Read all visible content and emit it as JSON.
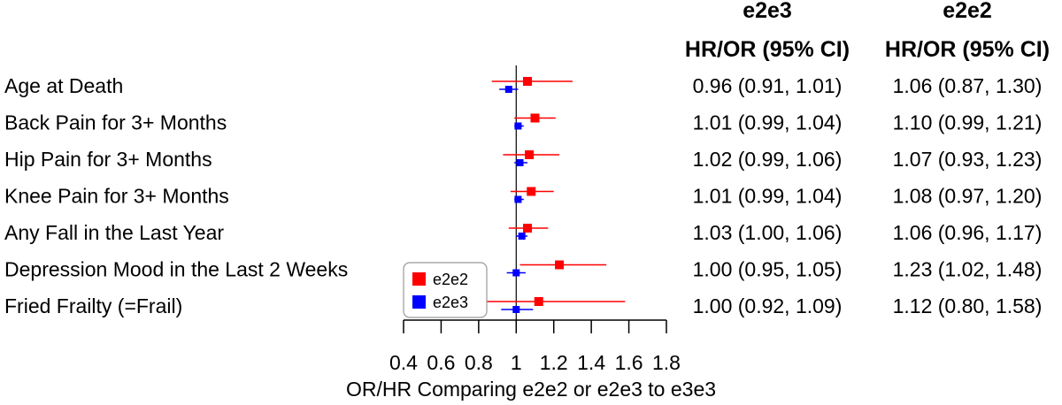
{
  "chart_data": {
    "type": "forest",
    "xlabel": "OR/HR Comparing e2e2 or e2e3 to e3e3",
    "xlim": [
      0.4,
      1.8
    ],
    "xticks": [
      0.4,
      0.6,
      0.8,
      1,
      1.2,
      1.4,
      1.6,
      1.8
    ],
    "xtick_labels": [
      "0.4",
      "0.6",
      "0.8",
      "1",
      "1.2",
      "1.4",
      "1.6",
      "1.8"
    ],
    "reference_line": 1,
    "columns": [
      {
        "group": "e2e3",
        "header": "HR/OR (95% CI)"
      },
      {
        "group": "e2e2",
        "header": "HR/OR (95% CI)"
      }
    ],
    "rows": [
      {
        "label": "Age at Death",
        "e2e3": {
          "est": 0.96,
          "lo": 0.91,
          "hi": 1.01,
          "text": "0.96 (0.91, 1.01)"
        },
        "e2e2": {
          "est": 1.06,
          "lo": 0.87,
          "hi": 1.3,
          "text": "1.06 (0.87, 1.30)"
        }
      },
      {
        "label": "Back Pain for 3+ Months",
        "e2e3": {
          "est": 1.01,
          "lo": 0.99,
          "hi": 1.04,
          "text": "1.01 (0.99, 1.04)"
        },
        "e2e2": {
          "est": 1.1,
          "lo": 0.99,
          "hi": 1.21,
          "text": "1.10 (0.99, 1.21)"
        }
      },
      {
        "label": "Hip Pain for 3+ Months",
        "e2e3": {
          "est": 1.02,
          "lo": 0.99,
          "hi": 1.06,
          "text": "1.02 (0.99, 1.06)"
        },
        "e2e2": {
          "est": 1.07,
          "lo": 0.93,
          "hi": 1.23,
          "text": "1.07 (0.93, 1.23)"
        }
      },
      {
        "label": "Knee Pain for 3+ Months",
        "e2e3": {
          "est": 1.01,
          "lo": 0.99,
          "hi": 1.04,
          "text": "1.01 (0.99, 1.04)"
        },
        "e2e2": {
          "est": 1.08,
          "lo": 0.97,
          "hi": 1.2,
          "text": "1.08 (0.97, 1.20)"
        }
      },
      {
        "label": "Any Fall in the Last Year",
        "e2e3": {
          "est": 1.03,
          "lo": 1.0,
          "hi": 1.06,
          "text": "1.03 (1.00, 1.06)"
        },
        "e2e2": {
          "est": 1.06,
          "lo": 0.96,
          "hi": 1.17,
          "text": "1.06 (0.96, 1.17)"
        }
      },
      {
        "label": "Depression Mood in the Last 2 Weeks",
        "e2e3": {
          "est": 1.0,
          "lo": 0.95,
          "hi": 1.05,
          "text": "1.00 (0.95, 1.05)"
        },
        "e2e2": {
          "est": 1.23,
          "lo": 1.02,
          "hi": 1.48,
          "text": "1.23 (1.02, 1.48)"
        }
      },
      {
        "label": "Fried Frailty (=Frail)",
        "e2e3": {
          "est": 1.0,
          "lo": 0.92,
          "hi": 1.09,
          "text": "1.00 (0.92, 1.09)"
        },
        "e2e2": {
          "est": 1.12,
          "lo": 0.8,
          "hi": 1.58,
          "text": "1.12 (0.80, 1.58)"
        }
      }
    ],
    "series": [
      {
        "name": "e2e2",
        "color": "#ff0000"
      },
      {
        "name": "e2e3",
        "color": "#0000ff"
      }
    ],
    "legend_position": "bottom-left"
  }
}
